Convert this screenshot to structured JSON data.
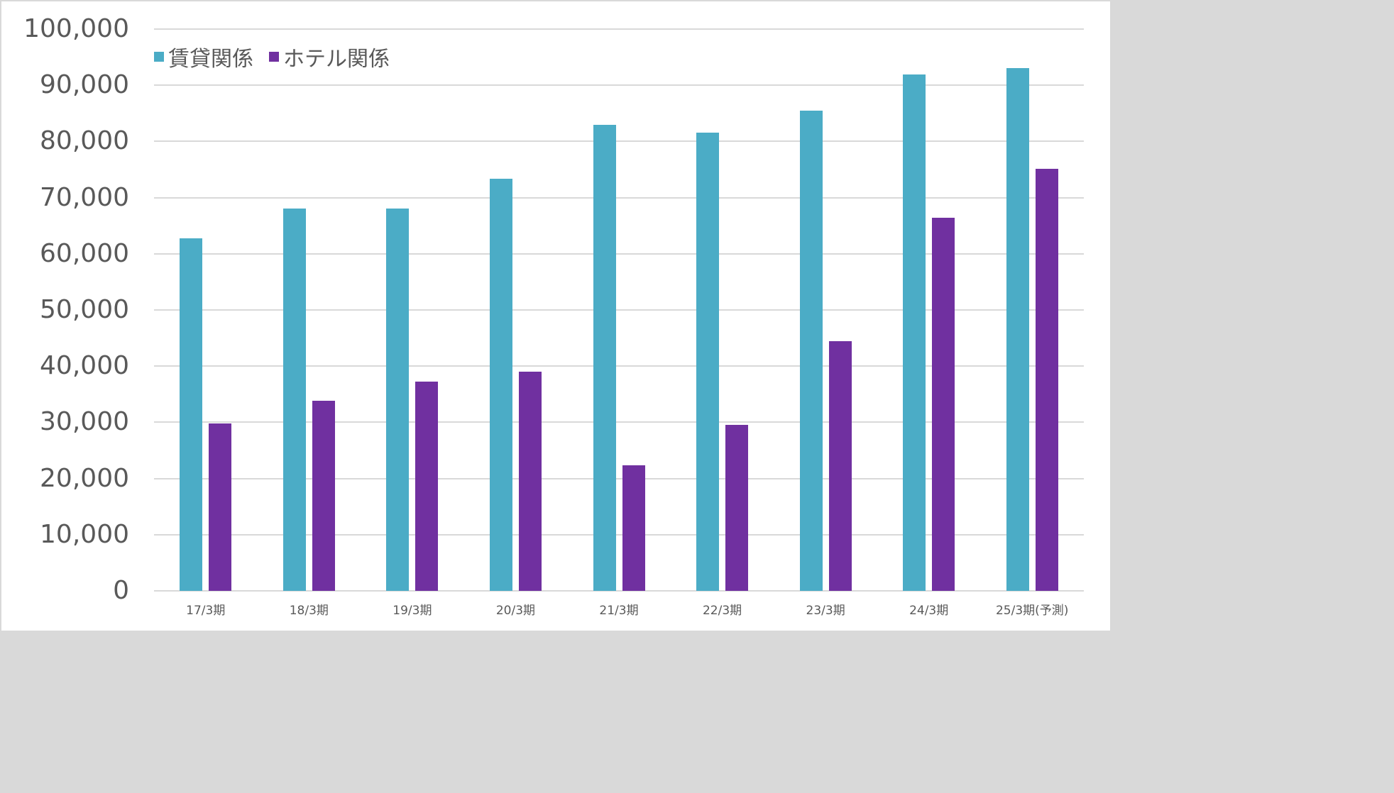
{
  "chart_data": {
    "type": "bar",
    "title": "",
    "xlabel": "",
    "ylabel": "",
    "ylim": [
      0,
      100000
    ],
    "yticks": [
      "0",
      "10,000",
      "20,000",
      "30,000",
      "40,000",
      "50,000",
      "60,000",
      "70,000",
      "80,000",
      "90,000",
      "100,000"
    ],
    "grid": true,
    "legend_position": "top-left",
    "categories": [
      "17/3期",
      "18/3期",
      "19/3期",
      "20/3期",
      "21/3期",
      "22/3期",
      "23/3期",
      "24/3期",
      "25/3期(予測)"
    ],
    "series": [
      {
        "name": "賃貸関係",
        "color": "#4bacc6",
        "values": [
          62800,
          68000,
          68000,
          73300,
          83000,
          81600,
          85500,
          91900,
          93000
        ]
      },
      {
        "name": "ホテル関係",
        "color": "#7030a0",
        "values": [
          29800,
          33800,
          37300,
          39000,
          22400,
          29500,
          44500,
          66400,
          75100
        ]
      }
    ]
  }
}
